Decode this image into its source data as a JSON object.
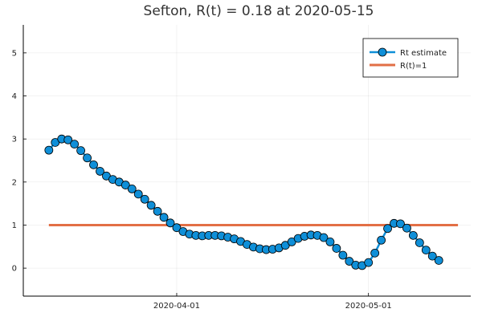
{
  "chart_data": {
    "type": "line",
    "title": "Sefton, R(t) = 0.18 at 2020-05-15",
    "xlabel": "",
    "ylabel": "",
    "x_start": "2020-03-12",
    "x_end": "2020-05-15",
    "xlim": [
      "2020-03-08",
      "2020-05-17"
    ],
    "ylim": [
      -0.65,
      5.65
    ],
    "x_ticks": [
      {
        "date": "2020-04-01",
        "label": "2020-04-01"
      },
      {
        "date": "2020-05-01",
        "label": "2020-05-01"
      }
    ],
    "y_ticks": [
      0,
      1,
      2,
      3,
      4,
      5
    ],
    "grid": true,
    "legend_position": "top-right",
    "series": [
      {
        "name": "Rt estimate",
        "color": "#0f8fd8",
        "marker": "circle",
        "values": [
          2.74,
          2.92,
          3.0,
          2.98,
          2.88,
          2.73,
          2.56,
          2.4,
          2.25,
          2.14,
          2.06,
          2.0,
          1.93,
          1.84,
          1.72,
          1.6,
          1.46,
          1.32,
          1.18,
          1.05,
          0.94,
          0.85,
          0.79,
          0.76,
          0.75,
          0.76,
          0.76,
          0.75,
          0.72,
          0.68,
          0.62,
          0.55,
          0.49,
          0.45,
          0.43,
          0.44,
          0.47,
          0.53,
          0.61,
          0.69,
          0.74,
          0.77,
          0.76,
          0.71,
          0.61,
          0.46,
          0.3,
          0.16,
          0.07,
          0.06,
          0.13,
          0.35,
          0.65,
          0.92,
          1.04,
          1.03,
          0.93,
          0.76,
          0.59,
          0.42,
          0.28,
          0.18
        ]
      },
      {
        "name": "R(t)=1",
        "color": "#e26f46",
        "constant": 1
      }
    ]
  }
}
